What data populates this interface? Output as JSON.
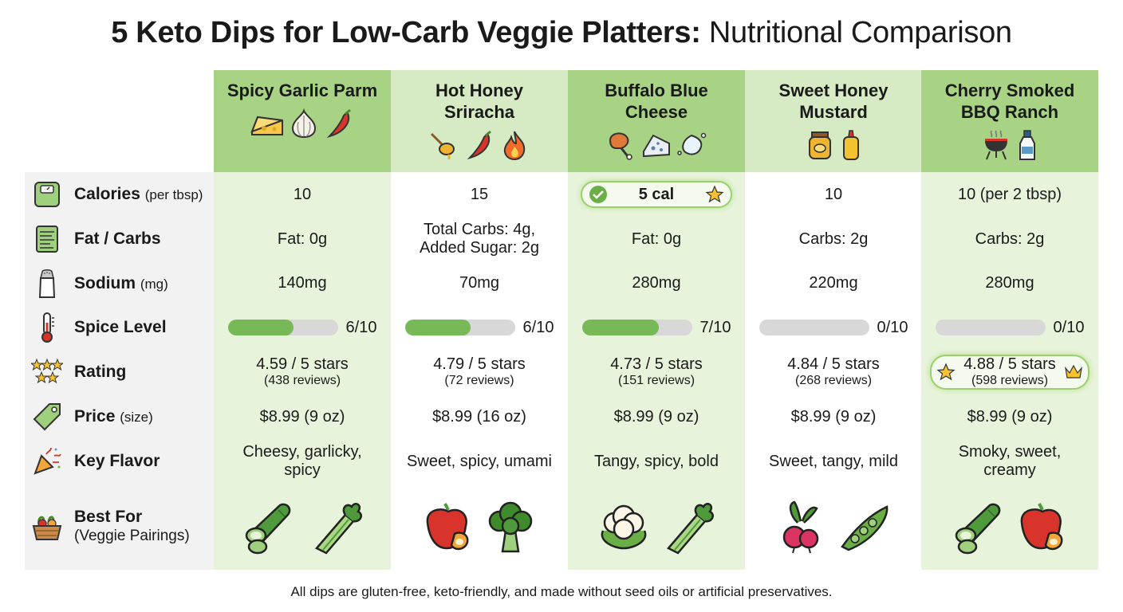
{
  "title": {
    "bold": "5 Keto Dips for Low-Carb Veggie Platters:",
    "light": "Nutritional Comparison"
  },
  "dips": [
    {
      "name": "Spicy Garlic Parm",
      "icons": [
        "cheese-icon",
        "garlic-icon",
        "chili-pepper-icon"
      ]
    },
    {
      "name": "Hot Honey Sriracha",
      "icons": [
        "honey-dipper-icon",
        "chili-pepper-icon",
        "fire-icon"
      ]
    },
    {
      "name": "Buffalo Blue Cheese",
      "icons": [
        "chicken-wing-icon",
        "blue-cheese-icon",
        "splash-icon"
      ]
    },
    {
      "name": "Sweet Honey Mustard",
      "icons": [
        "honey-jar-icon",
        "mustard-bottle-icon"
      ]
    },
    {
      "name": "Cherry Smoked BBQ Ranch",
      "icons": [
        "grill-icon",
        "ranch-bottle-icon"
      ]
    }
  ],
  "rows": {
    "calories": {
      "label": "Calories",
      "unit": "(per tbsp)",
      "values": [
        "10",
        "15",
        "5 cal",
        "10",
        "10 (per 2 tbsp)"
      ],
      "highlight_index": 2
    },
    "fatcarbs": {
      "label": "Fat / Carbs",
      "values": [
        "Fat: 0g",
        "Total Carbs: 4g, Added Sugar: 2g",
        "Fat: 0g",
        "Carbs: 2g",
        "Carbs: 2g"
      ]
    },
    "sodium": {
      "label": "Sodium",
      "unit": "(mg)",
      "values": [
        "140mg",
        "70mg",
        "280mg",
        "220mg",
        "280mg"
      ]
    },
    "spice": {
      "label": "Spice Level",
      "levels": [
        6,
        6,
        7,
        0,
        0
      ],
      "texts": [
        "6/10",
        "6/10",
        "7/10",
        "0/10",
        "0/10"
      ]
    },
    "rating": {
      "label": "Rating",
      "values": [
        "4.59 / 5 stars",
        "4.79 / 5 stars",
        "4.73 / 5 stars",
        "4.84 / 5 stars",
        "4.88 / 5 stars"
      ],
      "reviews": [
        "(438 reviews)",
        "(72 reviews)",
        "(151 reviews)",
        "(268 reviews)",
        "(598 reviews)"
      ],
      "highlight_index": 4
    },
    "price": {
      "label": "Price",
      "unit": "(size)",
      "values": [
        "$8.99 (9 oz)",
        "$8.99 (16 oz)",
        "$8.99 (9 oz)",
        "$8.99 (9 oz)",
        "$8.99 (9 oz)"
      ]
    },
    "flavor": {
      "label": "Key Flavor",
      "values": [
        "Cheesy, garlicky, spicy",
        "Sweet, spicy, umami",
        "Tangy, spicy, bold",
        "Sweet, tangy, mild",
        "Smoky, sweet, creamy"
      ]
    },
    "bestfor": {
      "label": "Best For",
      "sub": "(Veggie Pairings)",
      "veggies": [
        [
          "cucumber-icon",
          "celery-icon"
        ],
        [
          "bell-pepper-icon",
          "broccoli-icon"
        ],
        [
          "cauliflower-icon",
          "celery-icon"
        ],
        [
          "radish-icon",
          "snap-pea-icon"
        ],
        [
          "cucumber-icon",
          "bell-pepper-icon"
        ]
      ]
    }
  },
  "footer": "All dips are gluten-free, keto-friendly, and made without seed oils or artificial preservatives.",
  "colors": {
    "green_dark": "#a8d284",
    "green_light": "#d6ebc3",
    "green_cell": "#e8f3dc",
    "bar_fill": "#78b957",
    "highlight_border": "#9bd06f"
  }
}
